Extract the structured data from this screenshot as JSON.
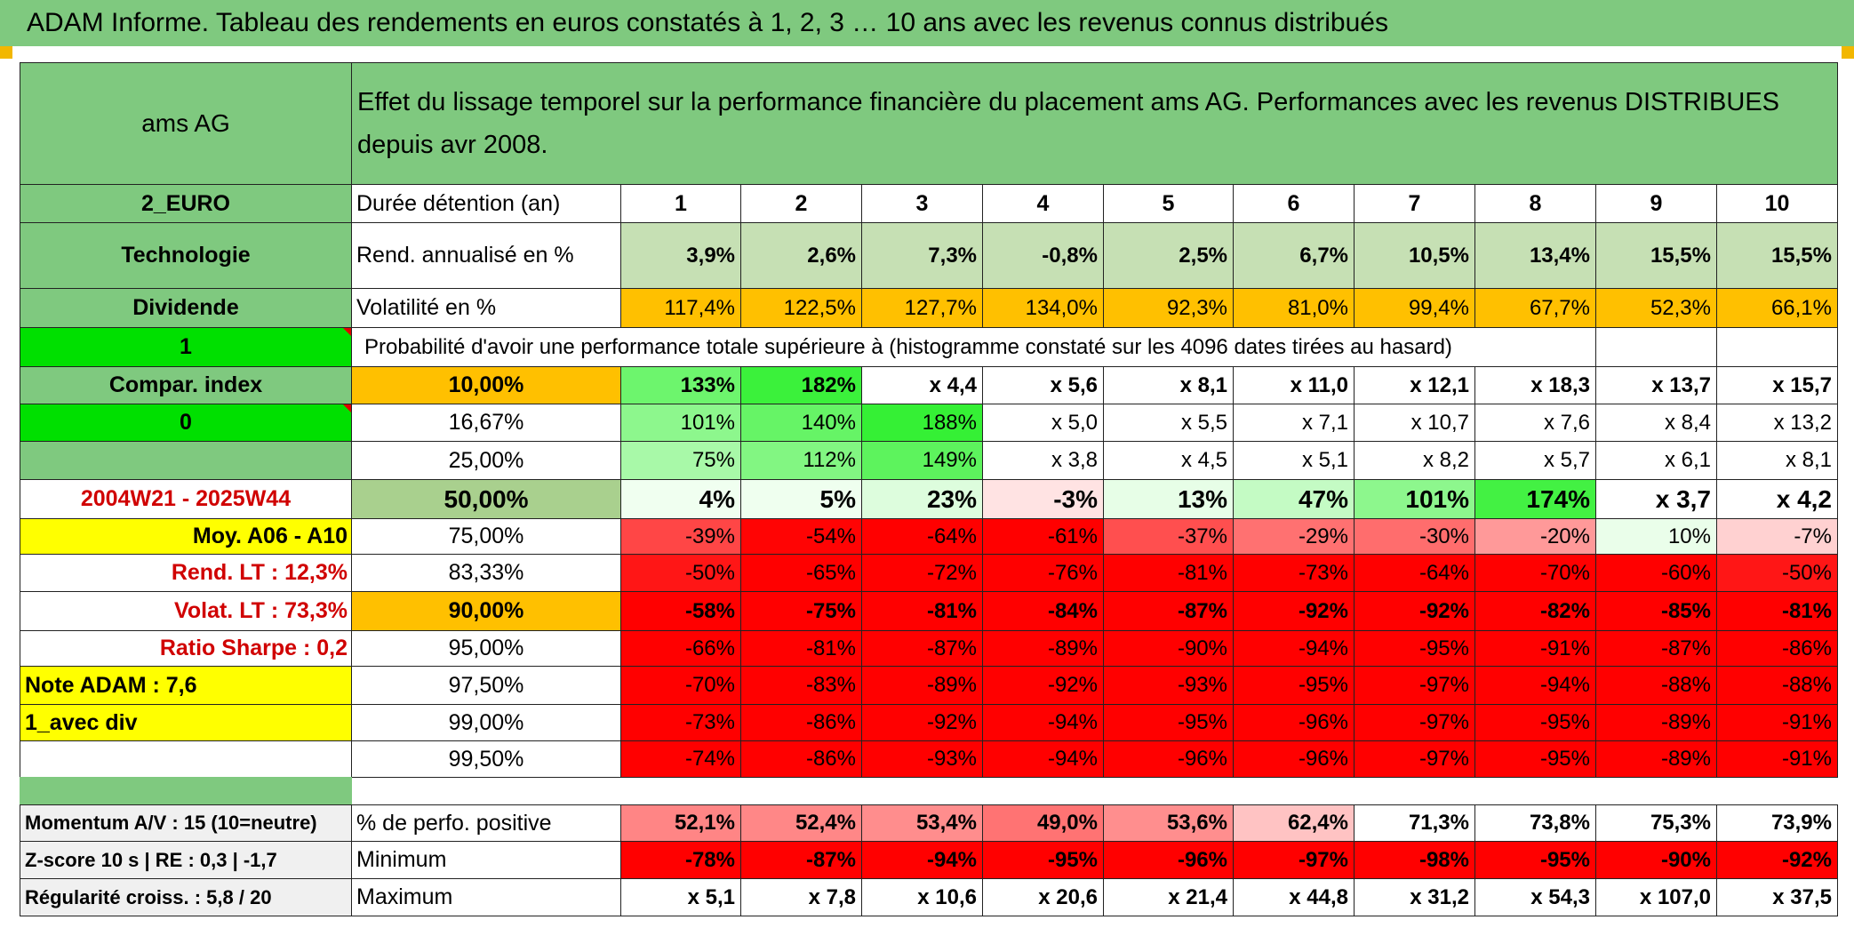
{
  "title": "ADAM Informe. Tableau des rendements en euros constatés à 1, 2, 3 … 10 ans avec les revenus connus distribués",
  "description": "Effet du lissage temporel sur la performance financière du placement ams AG. Performances avec les revenus DISTRIBUES depuis avr 2008.",
  "left": {
    "name": "ams AG",
    "currency": "2_EURO",
    "sector": "Technologie",
    "dividend_label": "Dividende",
    "flag1": "1",
    "compar_label": "Compar. index",
    "flag0": "0",
    "period": "2004W21 - 2025W44",
    "moy": "Moy. A06 - A10",
    "rend_lt": "Rend. LT :    12,3%",
    "volat_lt": "Volat. LT :    73,3%",
    "sharpe": "Ratio Sharpe :    0,2",
    "note": "Note ADAM : 7,6",
    "div_mode": "1_avec div"
  },
  "headers": {
    "duration": "Durée détention (an)",
    "years": [
      "1",
      "2",
      "3",
      "4",
      "5",
      "6",
      "7",
      "8",
      "9",
      "10"
    ],
    "rend": "Rend. annualisé en %",
    "vol": "Volatilité en %",
    "prob": "Probabilité d'avoir une performance totale supérieure à (histogramme constaté sur les 4096 dates tirées au hasard)"
  },
  "rend": [
    "3,9%",
    "2,6%",
    "7,3%",
    "-0,8%",
    "2,5%",
    "6,7%",
    "10,5%",
    "13,4%",
    "15,5%",
    "15,5%"
  ],
  "vol": [
    "117,4%",
    "122,5%",
    "127,7%",
    "134,0%",
    "92,3%",
    "81,0%",
    "99,4%",
    "67,7%",
    "52,3%",
    "66,1%"
  ],
  "percentiles": [
    {
      "p": "10,00%",
      "v": [
        "133%",
        "182%",
        "x 4,4",
        "x 5,6",
        "x 8,1",
        "x 11,0",
        "x 12,1",
        "x 18,3",
        "x 13,7",
        "x 15,7"
      ]
    },
    {
      "p": "16,67%",
      "v": [
        "101%",
        "140%",
        "188%",
        "x 5,0",
        "x 5,5",
        "x 7,1",
        "x 10,7",
        "x 7,6",
        "x 8,4",
        "x 13,2"
      ]
    },
    {
      "p": "25,00%",
      "v": [
        "75%",
        "112%",
        "149%",
        "x 3,8",
        "x 4,5",
        "x 5,1",
        "x 8,2",
        "x 5,7",
        "x 6,1",
        "x 8,1"
      ]
    },
    {
      "p": "50,00%",
      "v": [
        "4%",
        "5%",
        "23%",
        "-3%",
        "13%",
        "47%",
        "101%",
        "174%",
        "x 3,7",
        "x 4,2"
      ]
    },
    {
      "p": "75,00%",
      "v": [
        "-39%",
        "-54%",
        "-64%",
        "-61%",
        "-37%",
        "-29%",
        "-30%",
        "-20%",
        "10%",
        "-7%"
      ]
    },
    {
      "p": "83,33%",
      "v": [
        "-50%",
        "-65%",
        "-72%",
        "-76%",
        "-81%",
        "-73%",
        "-64%",
        "-70%",
        "-60%",
        "-50%"
      ]
    },
    {
      "p": "90,00%",
      "v": [
        "-58%",
        "-75%",
        "-81%",
        "-84%",
        "-87%",
        "-92%",
        "-92%",
        "-82%",
        "-85%",
        "-81%"
      ]
    },
    {
      "p": "95,00%",
      "v": [
        "-66%",
        "-81%",
        "-87%",
        "-89%",
        "-90%",
        "-94%",
        "-95%",
        "-91%",
        "-87%",
        "-86%"
      ]
    },
    {
      "p": "97,50%",
      "v": [
        "-70%",
        "-83%",
        "-89%",
        "-92%",
        "-93%",
        "-95%",
        "-97%",
        "-94%",
        "-88%",
        "-88%"
      ]
    },
    {
      "p": "99,00%",
      "v": [
        "-73%",
        "-86%",
        "-92%",
        "-94%",
        "-95%",
        "-96%",
        "-97%",
        "-95%",
        "-89%",
        "-91%"
      ]
    },
    {
      "p": "99,50%",
      "v": [
        "-74%",
        "-86%",
        "-93%",
        "-94%",
        "-96%",
        "-96%",
        "-97%",
        "-95%",
        "-89%",
        "-91%"
      ]
    }
  ],
  "bottom": [
    {
      "label": "Momentum A/V : 15 (10=neutre)",
      "metric": "% de perfo. positive",
      "v": [
        "52,1%",
        "52,4%",
        "53,4%",
        "49,0%",
        "53,6%",
        "62,4%",
        "71,3%",
        "73,8%",
        "75,3%",
        "73,9%"
      ]
    },
    {
      "label": "Z-score 10 s | RE : 0,3 | -1,7",
      "metric": "Minimum",
      "v": [
        "-78%",
        "-87%",
        "-94%",
        "-95%",
        "-96%",
        "-97%",
        "-98%",
        "-95%",
        "-90%",
        "-92%"
      ]
    },
    {
      "label": "Régularité croiss. : 5,8 / 20",
      "metric": "Maximum",
      "v": [
        "x 5,1",
        "x 7,8",
        "x 10,6",
        "x 20,6",
        "x 21,4",
        "x 44,8",
        "x 31,2",
        "x 54,3",
        "x 107,0",
        "x 37,5"
      ]
    }
  ],
  "colors": {
    "header_green": "#7fc97f",
    "pale_green": "#c6e0b4",
    "orange": "#ffc000",
    "yellow": "#ffff00",
    "bright_green": "#00e000",
    "dark_red": "#ff0000",
    "title_red": "#d00000"
  }
}
